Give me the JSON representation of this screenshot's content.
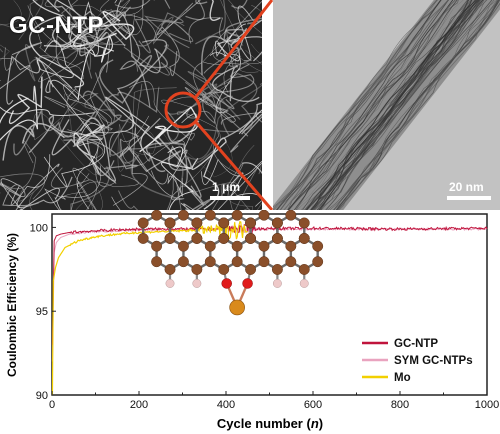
{
  "sem_panel": {
    "title": "GC-NTP",
    "scale_label": "1 μm"
  },
  "tem_panel": {
    "scale_label": "20 nm"
  },
  "colors": {
    "zoom_connector": "#e2421f",
    "gc_ntp": "#c0143c",
    "sym_gc_ntps": "#e9a3bf",
    "mo": "#f2d000",
    "carbon_atom": "#8a4f2a",
    "hydrogen_atom": "#eec9c9",
    "oxygen_atom": "#e01b1b",
    "mo_atom": "#d98a1c"
  },
  "chart_data": {
    "type": "line",
    "xlabel": "Cycle number (n)",
    "ylabel": "Coulombic Efficiency (%)",
    "xlim": [
      0,
      1000
    ],
    "ylim": [
      90,
      100.8
    ],
    "x_ticks": [
      "0",
      "200",
      "400",
      "600",
      "800",
      "1000"
    ],
    "y_ticks": [
      "90",
      "95",
      "100"
    ],
    "legend_position": "bottom-right",
    "series": [
      {
        "name": "GC-NTP",
        "x": [
          1,
          5,
          10,
          20,
          40,
          100,
          200,
          400,
          600,
          800,
          1000
        ],
        "values": [
          93.0,
          99.2,
          99.5,
          99.6,
          99.7,
          99.8,
          99.9,
          99.9,
          99.95,
          99.9,
          99.95
        ]
      },
      {
        "name": "SYM GC-NTPs",
        "x": [
          1,
          5,
          10,
          20,
          40,
          100,
          200,
          400,
          600,
          800,
          1000
        ],
        "values": [
          92.0,
          98.5,
          99.1,
          99.4,
          99.6,
          99.75,
          99.85,
          99.9,
          99.9,
          99.9,
          99.9
        ]
      },
      {
        "name": "Mo",
        "x": [
          1,
          3,
          8,
          15,
          30,
          60,
          100,
          150,
          200,
          250,
          300,
          350,
          400,
          420,
          450
        ],
        "values": [
          90.0,
          96.8,
          97.6,
          98.2,
          98.8,
          99.2,
          99.45,
          99.6,
          99.7,
          99.75,
          99.8,
          99.85,
          99.9,
          99.9,
          99.9
        ]
      }
    ]
  }
}
